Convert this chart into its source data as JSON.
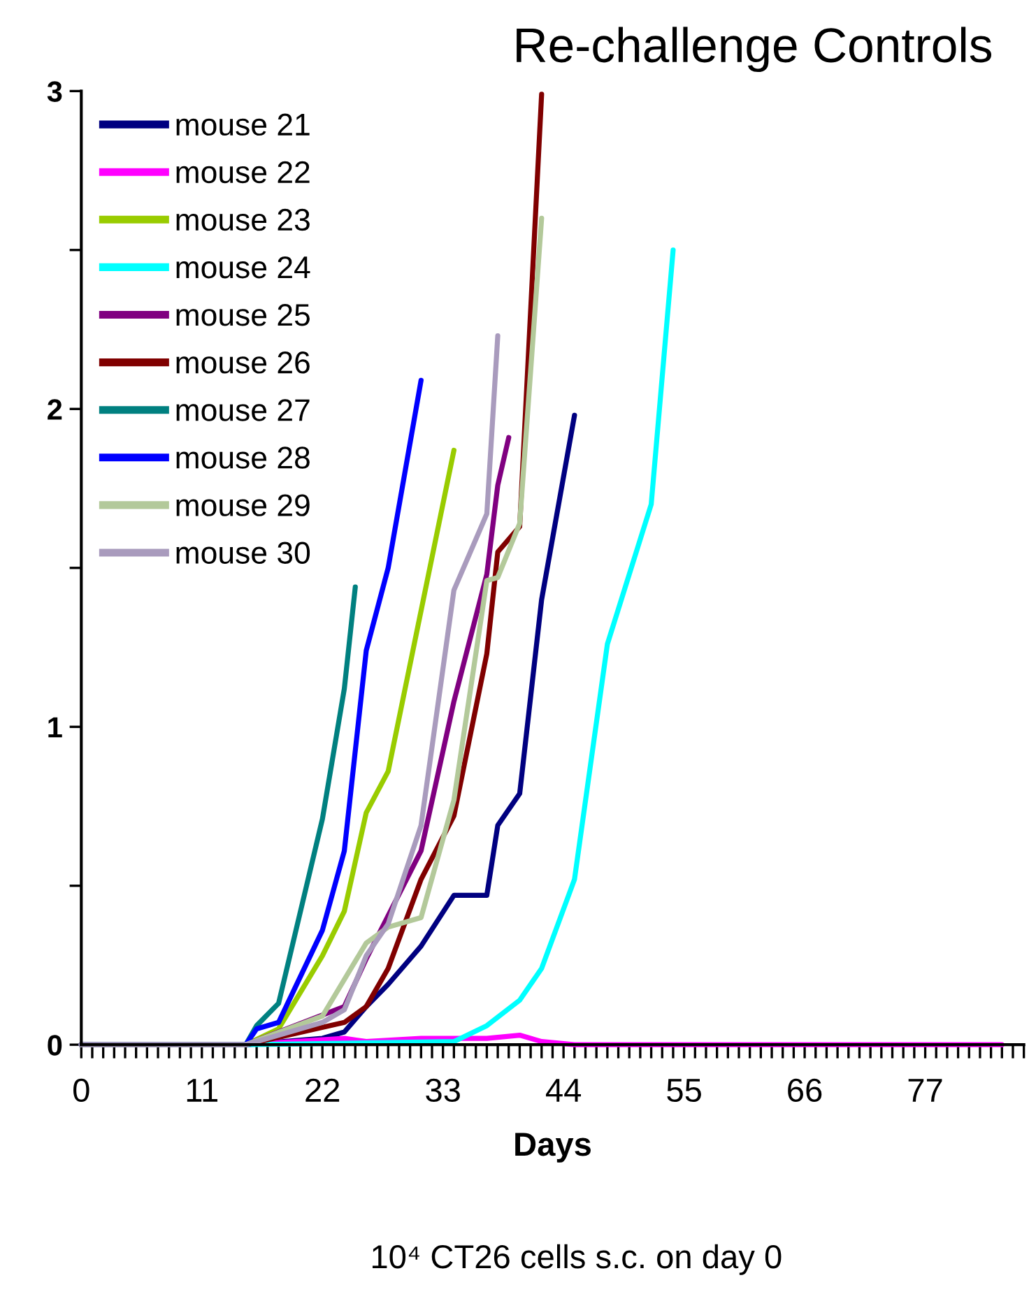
{
  "chart_data": {
    "type": "line",
    "title": "Re-challenge Controls",
    "xlabel": "Days",
    "annotations": [
      "10⁴ CT26 cells s.c. on day 0"
    ],
    "xlim": [
      0,
      86
    ],
    "ylim": [
      0,
      3
    ],
    "xticks": [
      0,
      {
        "value": 1,
        "label": null
      },
      {
        "value": 2,
        "label": null
      },
      {
        "value": 3,
        "label": null
      },
      {
        "value": 4,
        "label": null
      },
      {
        "value": 5,
        "label": null
      },
      {
        "value": 6,
        "label": null
      },
      {
        "value": 7,
        "label": null
      },
      {
        "value": 8,
        "label": null
      },
      {
        "value": 9,
        "label": null
      },
      {
        "value": 10,
        "label": null
      },
      11,
      {
        "value": 12,
        "label": null
      },
      {
        "value": 13,
        "label": null
      },
      {
        "value": 14,
        "label": null
      },
      {
        "value": 15,
        "label": null
      },
      {
        "value": 16,
        "label": null
      },
      {
        "value": 17,
        "label": null
      },
      {
        "value": 18,
        "label": null
      },
      {
        "value": 19,
        "label": null
      },
      {
        "value": 20,
        "label": null
      },
      {
        "value": 21,
        "label": null
      },
      22,
      {
        "value": 23,
        "label": null
      },
      {
        "value": 24,
        "label": null
      },
      {
        "value": 25,
        "label": null
      },
      {
        "value": 26,
        "label": null
      },
      {
        "value": 27,
        "label": null
      },
      {
        "value": 28,
        "label": null
      },
      {
        "value": 29,
        "label": null
      },
      {
        "value": 30,
        "label": null
      },
      {
        "value": 31,
        "label": null
      },
      {
        "value": 32,
        "label": null
      },
      33,
      {
        "value": 34,
        "label": null
      },
      {
        "value": 35,
        "label": null
      },
      {
        "value": 36,
        "label": null
      },
      {
        "value": 37,
        "label": null
      },
      {
        "value": 38,
        "label": null
      },
      {
        "value": 39,
        "label": null
      },
      {
        "value": 40,
        "label": null
      },
      {
        "value": 41,
        "label": null
      },
      {
        "value": 42,
        "label": null
      },
      {
        "value": 43,
        "label": null
      },
      44,
      {
        "value": 45,
        "label": null
      },
      {
        "value": 46,
        "label": null
      },
      {
        "value": 47,
        "label": null
      },
      {
        "value": 48,
        "label": null
      },
      {
        "value": 49,
        "label": null
      },
      {
        "value": 50,
        "label": null
      },
      {
        "value": 51,
        "label": null
      },
      {
        "value": 52,
        "label": null
      },
      {
        "value": 53,
        "label": null
      },
      {
        "value": 54,
        "label": null
      },
      55,
      {
        "value": 56,
        "label": null
      },
      {
        "value": 57,
        "label": null
      },
      {
        "value": 58,
        "label": null
      },
      {
        "value": 59,
        "label": null
      },
      {
        "value": 60,
        "label": null
      },
      {
        "value": 61,
        "label": null
      },
      {
        "value": 62,
        "label": null
      },
      {
        "value": 63,
        "label": null
      },
      {
        "value": 64,
        "label": null
      },
      {
        "value": 65,
        "label": null
      },
      66,
      {
        "value": 67,
        "label": null
      },
      {
        "value": 68,
        "label": null
      },
      {
        "value": 69,
        "label": null
      },
      {
        "value": 70,
        "label": null
      },
      {
        "value": 71,
        "label": null
      },
      {
        "value": 72,
        "label": null
      },
      {
        "value": 73,
        "label": null
      },
      {
        "value": 74,
        "label": null
      },
      {
        "value": 75,
        "label": null
      },
      {
        "value": 76,
        "label": null
      },
      77,
      {
        "value": 78,
        "label": null
      },
      {
        "value": 79,
        "label": null
      },
      {
        "value": 80,
        "label": null
      },
      {
        "value": 81,
        "label": null
      },
      {
        "value": 82,
        "label": null
      },
      {
        "value": 83,
        "label": null
      },
      {
        "value": 84,
        "label": null
      },
      {
        "value": 85,
        "label": null
      },
      {
        "value": 86,
        "label": null
      }
    ],
    "yticks": [
      0,
      {
        "value": 0.5,
        "label": null
      },
      1,
      {
        "value": 1.5,
        "label": null
      },
      2,
      {
        "value": 2.5,
        "label": null
      },
      3
    ],
    "grid": false,
    "legend": "top left",
    "marker": "none",
    "line_style": "solid",
    "series": [
      {
        "name": "mouse 21",
        "color": "#000080",
        "x": [
          0,
          15,
          22,
          24,
          26,
          28,
          31,
          34,
          37,
          38,
          40,
          42,
          45
        ],
        "values": [
          0,
          0,
          0.02,
          0.04,
          0.12,
          0.19,
          0.31,
          0.47,
          0.47,
          0.69,
          0.79,
          1.4,
          1.98
        ]
      },
      {
        "name": "mouse 22",
        "color": "#ff00ff",
        "x": [
          0,
          15,
          24,
          26,
          31,
          34,
          37,
          40,
          42,
          45,
          84
        ],
        "values": [
          0,
          0,
          0.02,
          0.01,
          0.02,
          0.02,
          0.02,
          0.03,
          0.01,
          0,
          0
        ]
      },
      {
        "name": "mouse 23",
        "color": "#99cc00",
        "x": [
          0,
          15,
          18,
          22,
          24,
          26,
          28,
          34
        ],
        "values": [
          0,
          0,
          0.05,
          0.28,
          0.42,
          0.73,
          0.86,
          1.87
        ]
      },
      {
        "name": "mouse 24",
        "color": "#00ffff",
        "x": [
          0,
          15,
          34,
          37,
          40,
          42,
          45,
          48,
          52,
          54
        ],
        "values": [
          0,
          0,
          0.01,
          0.06,
          0.14,
          0.24,
          0.52,
          1.26,
          1.7,
          2.5
        ]
      },
      {
        "name": "mouse 25",
        "color": "#800080",
        "x": [
          0,
          15,
          24,
          26,
          31,
          34,
          37,
          38,
          39
        ],
        "values": [
          0,
          0,
          0.12,
          0.27,
          0.61,
          1.08,
          1.48,
          1.76,
          1.91
        ]
      },
      {
        "name": "mouse 26",
        "color": "#800000",
        "x": [
          0,
          15,
          24,
          26,
          28,
          31,
          34,
          37,
          38,
          40,
          42
        ],
        "values": [
          0,
          0,
          0.07,
          0.12,
          0.24,
          0.52,
          0.72,
          1.23,
          1.55,
          1.63,
          2.99
        ]
      },
      {
        "name": "mouse 27",
        "color": "#008080",
        "x": [
          0,
          15,
          16,
          18,
          22,
          24,
          25
        ],
        "values": [
          0,
          0,
          0.06,
          0.13,
          0.71,
          1.12,
          1.44
        ]
      },
      {
        "name": "mouse 28",
        "color": "#0000ff",
        "x": [
          0,
          15,
          16,
          18,
          22,
          24,
          26,
          28,
          31
        ],
        "values": [
          0,
          0,
          0.05,
          0.07,
          0.36,
          0.61,
          1.24,
          1.5,
          2.09
        ]
      },
      {
        "name": "mouse 29",
        "color": "#b3c99a",
        "x": [
          0,
          15,
          22,
          26,
          28,
          31,
          34,
          37,
          38,
          40,
          42
        ],
        "values": [
          0,
          0,
          0.09,
          0.32,
          0.37,
          0.4,
          0.77,
          1.46,
          1.47,
          1.64,
          2.6
        ]
      },
      {
        "name": "mouse 30",
        "color": "#a99bbd",
        "x": [
          0,
          15,
          22,
          24,
          26,
          28,
          31,
          34,
          37,
          38
        ],
        "values": [
          0,
          0,
          0.07,
          0.11,
          0.28,
          0.38,
          0.69,
          1.43,
          1.67,
          2.23
        ]
      }
    ]
  }
}
